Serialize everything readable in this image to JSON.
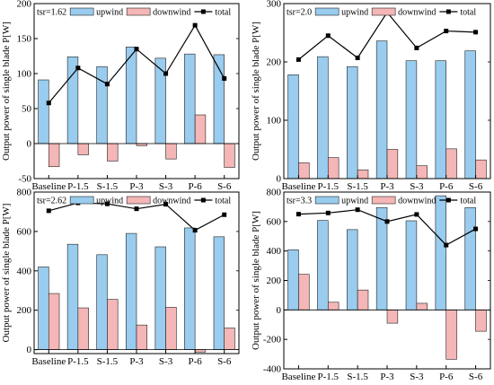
{
  "legend_labels": {
    "upwind": "upwind",
    "downwind": "downwind",
    "total": "total"
  },
  "colors": {
    "upwind": "#99ccee",
    "downwind": "#f4b6b6",
    "total": "#000000",
    "bar_edge": "#222222"
  },
  "chart_data": [
    {
      "type": "bar",
      "title": "tsr=1.62",
      "ylabel": "Output power of single blade P[W]",
      "categories": [
        "Baseline",
        "P-1.5",
        "S-1.5",
        "P-3",
        "S-3",
        "P-6",
        "S-6"
      ],
      "ylim": [
        -50,
        200
      ],
      "yticks": [
        -50,
        0,
        50,
        100,
        150,
        200
      ],
      "series": [
        {
          "name": "upwind",
          "type": "bar",
          "values": [
            91,
            124,
            110,
            138,
            122,
            128,
            127
          ]
        },
        {
          "name": "downwind",
          "type": "bar",
          "values": [
            -33,
            -16,
            -25,
            -3,
            -22,
            41,
            -34
          ]
        },
        {
          "name": "total",
          "type": "line",
          "values": [
            58,
            108,
            85,
            135,
            100,
            169,
            93
          ]
        }
      ],
      "legend": "top"
    },
    {
      "type": "bar",
      "title": "tsr=2.0",
      "ylabel": "Output power of single blade P[W]",
      "categories": [
        "Baseline",
        "P-1.5",
        "S-1.5",
        "P-3",
        "S-3",
        "P-6",
        "S-6"
      ],
      "ylim": [
        0,
        300
      ],
      "yticks": [
        0,
        100,
        200,
        300
      ],
      "series": [
        {
          "name": "upwind",
          "type": "bar",
          "values": [
            178,
            209,
            192,
            236,
            202,
            202,
            219
          ]
        },
        {
          "name": "downwind",
          "type": "bar",
          "values": [
            27,
            36,
            15,
            50,
            22,
            51,
            32
          ]
        },
        {
          "name": "total",
          "type": "line",
          "values": [
            204,
            245,
            207,
            285,
            224,
            253,
            251
          ]
        }
      ],
      "legend": "top"
    },
    {
      "type": "bar",
      "title": "tsr=2.62",
      "ylabel": "Output power of single blade P[W]",
      "categories": [
        "Baseline",
        "P-1.5",
        "S-1.5",
        "P-3",
        "S-3",
        "P-6",
        "S-6"
      ],
      "ylim": [
        -20,
        800
      ],
      "yticks": [
        0,
        200,
        400,
        600,
        800
      ],
      "series": [
        {
          "name": "upwind",
          "type": "bar",
          "values": [
            420,
            535,
            482,
            590,
            522,
            618,
            573
          ]
        },
        {
          "name": "downwind",
          "type": "bar",
          "values": [
            285,
            212,
            255,
            125,
            215,
            -12,
            110
          ]
        },
        {
          "name": "total",
          "type": "line",
          "values": [
            705,
            745,
            740,
            715,
            738,
            606,
            685
          ]
        }
      ],
      "legend": "top"
    },
    {
      "type": "bar",
      "title": "tsr=3.3",
      "ylabel": "Output power of single blade P[W]",
      "categories": [
        "Baseline",
        "P-1.5",
        "S-1.5",
        "P-3",
        "S-3",
        "P-6",
        "S-6"
      ],
      "ylim": [
        -400,
        800
      ],
      "yticks": [
        -400,
        -200,
        0,
        200,
        400,
        600,
        800
      ],
      "series": [
        {
          "name": "upwind",
          "type": "bar",
          "values": [
            408,
            607,
            545,
            695,
            605,
            775,
            695
          ]
        },
        {
          "name": "downwind",
          "type": "bar",
          "values": [
            242,
            52,
            135,
            -90,
            45,
            -335,
            -145
          ]
        },
        {
          "name": "total",
          "type": "line",
          "values": [
            650,
            658,
            680,
            600,
            648,
            440,
            550
          ]
        }
      ],
      "legend": "top"
    }
  ]
}
